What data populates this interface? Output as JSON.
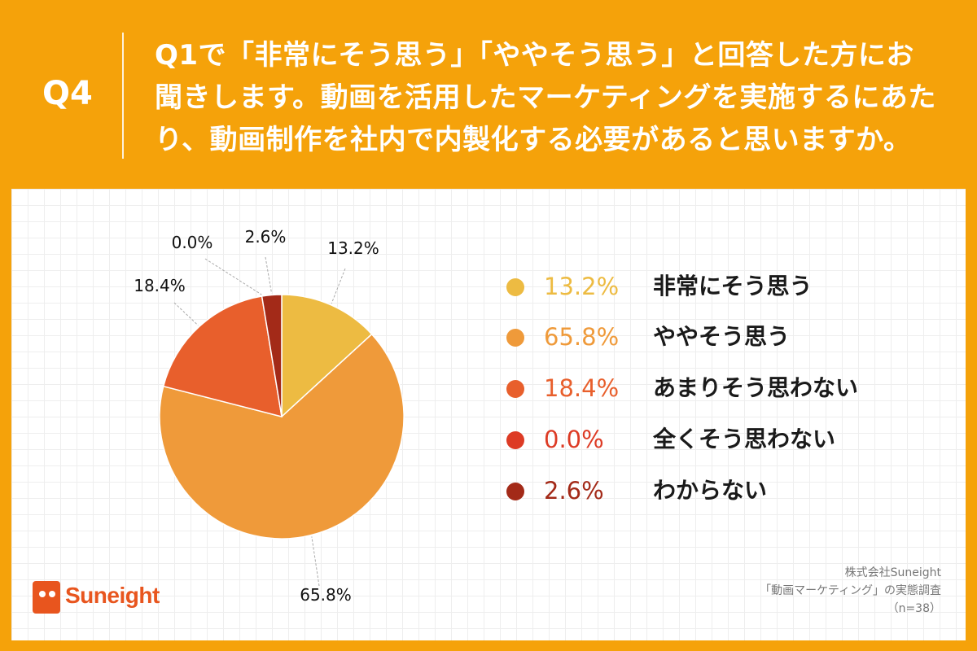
{
  "header": {
    "qnum": "Q4",
    "question_lines": [
      "Q1で「非常にそう思う」「ややそう思う」と回答した方にお",
      "聞きします。動画を活用したマーケティングを実施するにあた",
      "り、動画制作を社内で内製化する必要があると思いますか。"
    ]
  },
  "chart_data": {
    "type": "pie",
    "categories": [
      "非常にそう思う",
      "ややそう思う",
      "あまりそう思わない",
      "全くそう思わない",
      "わからない"
    ],
    "values": [
      13.2,
      65.8,
      18.4,
      0.0,
      2.6
    ],
    "value_labels": [
      "13.2%",
      "65.8%",
      "18.4%",
      "0.0%",
      "2.6%"
    ],
    "colors": [
      "#EDBB42",
      "#EF9A3A",
      "#E85F2C",
      "#DD3B25",
      "#A32A18"
    ],
    "legend_placement": "right"
  },
  "legend": [
    {
      "pct": "13.2%",
      "label": "非常にそう思う",
      "color": "#EDBB42"
    },
    {
      "pct": "65.8%",
      "label": "ややそう思う",
      "color": "#EF9A3A"
    },
    {
      "pct": "18.4%",
      "label": "あまりそう思わない",
      "color": "#E85F2C"
    },
    {
      "pct": "0.0%",
      "label": "全くそう思わない",
      "color": "#DD3B25"
    },
    {
      "pct": "2.6%",
      "label": "わからない",
      "color": "#A32A18"
    }
  ],
  "source": {
    "company": "株式会社Suneight",
    "survey": "「動画マーケティング」の実態調査",
    "sample": "（n=38）"
  },
  "logo": {
    "text": "Suneight"
  }
}
